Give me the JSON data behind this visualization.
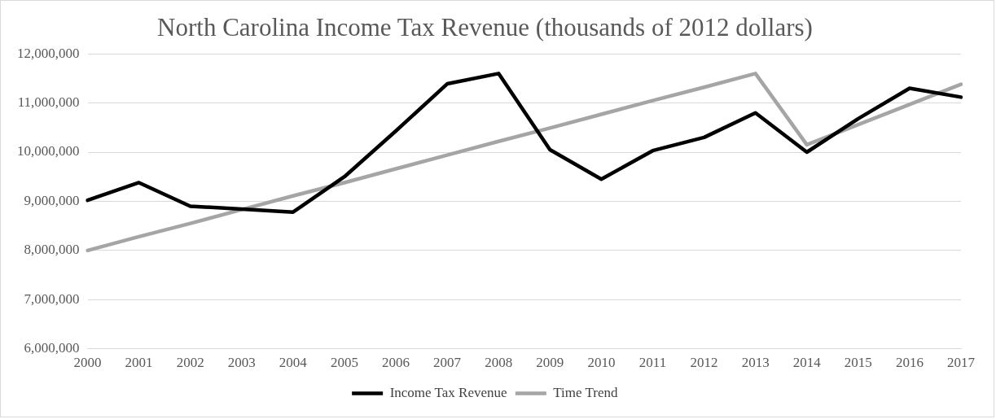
{
  "chart_data": {
    "type": "line",
    "title": "North Carolina Income Tax Revenue (thousands of 2012 dollars)",
    "categories": [
      "2000",
      "2001",
      "2002",
      "2003",
      "2004",
      "2005",
      "2006",
      "2007",
      "2008",
      "2009",
      "2010",
      "2011",
      "2012",
      "2013",
      "2014",
      "2015",
      "2016",
      "2017"
    ],
    "series": [
      {
        "name": "Income Tax Revenue",
        "color": "#000000",
        "values": [
          9020000,
          9380000,
          8900000,
          8840000,
          8780000,
          9500000,
          10430000,
          11390000,
          11600000,
          10050000,
          9450000,
          10030000,
          10300000,
          10800000,
          10000000,
          10680000,
          11300000,
          11120000
        ]
      },
      {
        "name": "Time Trend",
        "color": "#a5a5a5",
        "values": [
          8000000,
          8280000,
          8550000,
          8830000,
          9110000,
          9380000,
          9660000,
          9940000,
          10220000,
          10490000,
          10770000,
          11050000,
          11320000,
          11600000,
          10150000,
          10560000,
          10970000,
          11380000
        ]
      }
    ],
    "ylim": [
      6000000,
      12000000
    ],
    "yticks": [
      {
        "value": 6000000,
        "label": "6,000,000"
      },
      {
        "value": 7000000,
        "label": "7,000,000"
      },
      {
        "value": 8000000,
        "label": "8,000,000"
      },
      {
        "value": 9000000,
        "label": "9,000,000"
      },
      {
        "value": 10000000,
        "label": "10,000,000"
      },
      {
        "value": 11000000,
        "label": "11,000,000"
      },
      {
        "value": 12000000,
        "label": "12,000,000"
      }
    ],
    "grid": "y",
    "legend": "bottom",
    "marker": "none",
    "line_style": "solid"
  }
}
